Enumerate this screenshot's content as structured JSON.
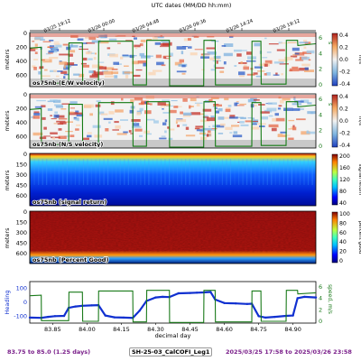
{
  "figure": {
    "top_axis_title": "UTC dates (MM/DD hh:mm)",
    "top_ticks": [
      "03/25 19:12",
      "03/26 00:00",
      "03/26 04:48",
      "03/26 09:36",
      "03/26 14:24",
      "03/26 19:12"
    ],
    "footer": {
      "range": "83.75 to 85.0 (1.25 days)",
      "cruise": "SH-25-03_CalCOFI_Leg1",
      "dates": "2025/03/25 17:58 to 2025/03/26 23:58"
    }
  },
  "chart_data": [
    {
      "type": "heatmap",
      "panel_label": "os75nb (E/W velocity)",
      "ylabel": "meters",
      "y_ticks": [
        "0",
        "200",
        "400",
        "600"
      ],
      "ylim": [
        700,
        0
      ],
      "right_axis_label": "s",
      "right_ticks": [
        "0",
        "2",
        "4",
        "6"
      ],
      "right_axis_color": "#1a7a1a",
      "colorbar": {
        "label": "m/s",
        "ticks": [
          "0.4",
          "0.2",
          "0.0",
          "-0.2",
          "-0.4"
        ],
        "range": [
          -0.4,
          0.4
        ],
        "palette": "diverging"
      },
      "speed_line": {
        "x": [
          83.75,
          83.8,
          83.801,
          83.92,
          83.921,
          83.98,
          83.981,
          84.05,
          84.051,
          84.2,
          84.201,
          84.26,
          84.261,
          84.36,
          84.361,
          84.51,
          84.511,
          84.56,
          84.561,
          84.72,
          84.721,
          84.76,
          84.761,
          84.87,
          84.871,
          84.92,
          84.921,
          85.0
        ],
        "y": [
          4.5,
          4.6,
          0.4,
          0.4,
          5.1,
          5.1,
          0.3,
          0.3,
          5.3,
          5.3,
          0.2,
          0.2,
          5.4,
          5.4,
          0.1,
          0.1,
          5.4,
          5.4,
          0.2,
          0.2,
          5.3,
          5.3,
          0.3,
          0.3,
          5.4,
          5.4,
          4.8,
          5.0
        ]
      }
    },
    {
      "type": "heatmap",
      "panel_label": "os75nb (N/S velocity)",
      "ylabel": "meters",
      "y_ticks": [
        "0",
        "200",
        "400",
        "600"
      ],
      "ylim": [
        700,
        0
      ],
      "right_axis_label": "s",
      "right_ticks": [
        "0",
        "2",
        "4",
        "6"
      ],
      "right_axis_color": "#1a7a1a",
      "colorbar": {
        "label": "m/s",
        "ticks": [
          "0.4",
          "0.2",
          "0.0",
          "-0.2",
          "-0.4"
        ],
        "range": [
          -0.4,
          0.4
        ],
        "palette": "diverging"
      },
      "speed_line": {
        "x": [
          83.75,
          83.8,
          83.801,
          83.92,
          83.921,
          83.98,
          83.981,
          84.05,
          84.051,
          84.2,
          84.201,
          84.26,
          84.261,
          84.36,
          84.361,
          84.51,
          84.511,
          84.56,
          84.561,
          84.72,
          84.721,
          84.76,
          84.761,
          84.87,
          84.871,
          84.92,
          84.921,
          85.0
        ],
        "y": [
          4.5,
          4.6,
          0.4,
          0.4,
          5.1,
          5.1,
          0.3,
          0.3,
          5.3,
          5.3,
          0.2,
          0.2,
          5.4,
          5.4,
          0.1,
          0.1,
          5.4,
          5.4,
          0.2,
          0.2,
          5.3,
          5.3,
          0.3,
          0.3,
          5.4,
          5.4,
          4.8,
          5.0
        ]
      }
    },
    {
      "type": "heatmap",
      "panel_label": "os75nb (signal return)",
      "ylabel": "meters",
      "y_ticks": [
        "0",
        "150",
        "300",
        "450",
        "600"
      ],
      "ylim": [
        700,
        0
      ],
      "colorbar": {
        "label": "signal return",
        "ticks": [
          "200",
          "160",
          "120",
          "80",
          "40"
        ],
        "range": [
          20,
          200
        ],
        "palette": "jet"
      }
    },
    {
      "type": "heatmap",
      "panel_label": "os75nb (Percent Good)",
      "ylabel": "meters",
      "y_ticks": [
        "0",
        "150",
        "300",
        "450",
        "600"
      ],
      "ylim": [
        700,
        0
      ],
      "colorbar": {
        "label": "percent good",
        "ticks": [
          "100",
          "80",
          "60",
          "40",
          "20",
          "0"
        ],
        "range": [
          0,
          100
        ],
        "palette": "jet"
      }
    },
    {
      "type": "line",
      "ylabel": "Heading",
      "y_ticks": [
        "100",
        "0",
        "-100"
      ],
      "ylim": [
        -150,
        150
      ],
      "right_axis_label": "speed, m/s",
      "right_ticks": [
        "0",
        "2",
        "4",
        "6"
      ],
      "right_axis_color": "#1a7a1a",
      "xlabel": "decimal day",
      "x_ticks": [
        "83.85",
        "84.00",
        "84.15",
        "84.30",
        "84.45",
        "84.60",
        "84.75",
        "84.90"
      ],
      "xlim": [
        83.75,
        85.0
      ],
      "series": [
        {
          "color": "#1030d0",
          "x": [
            83.75,
            83.8,
            83.83,
            83.86,
            83.9,
            83.92,
            83.95,
            83.98,
            84.02,
            84.05,
            84.08,
            84.12,
            84.16,
            84.2,
            84.23,
            84.26,
            84.3,
            84.33,
            84.36,
            84.4,
            84.45,
            84.48,
            84.51,
            84.54,
            84.56,
            84.6,
            84.65,
            84.7,
            84.72,
            84.75,
            84.78,
            84.82,
            84.87,
            84.9,
            84.92,
            84.95,
            85.0
          ],
          "y": [
            -110,
            -112,
            -105,
            -100,
            -98,
            -40,
            -30,
            -25,
            -22,
            -20,
            -95,
            -108,
            -110,
            -112,
            -60,
            10,
            35,
            40,
            38,
            65,
            68,
            70,
            72,
            75,
            20,
            -5,
            -8,
            -12,
            -10,
            -100,
            -110,
            -105,
            -98,
            -95,
            30,
            40,
            35
          ]
        },
        {
          "color": "#1a7a1a",
          "x": [
            83.75,
            83.8,
            83.801,
            83.92,
            83.921,
            83.98,
            83.981,
            84.05,
            84.051,
            84.2,
            84.201,
            84.26,
            84.261,
            84.36,
            84.361,
            84.51,
            84.511,
            84.56,
            84.561,
            84.72,
            84.721,
            84.76,
            84.761,
            84.87,
            84.871,
            84.92,
            84.921,
            85.0
          ],
          "y": [
            4.5,
            4.6,
            0.4,
            0.4,
            5.1,
            5.1,
            0.3,
            0.3,
            5.3,
            5.3,
            0.2,
            0.2,
            5.4,
            5.4,
            0.1,
            0.1,
            5.4,
            5.4,
            0.2,
            0.2,
            5.3,
            5.3,
            0.3,
            0.3,
            5.4,
            5.4,
            4.8,
            5.0
          ]
        }
      ]
    }
  ]
}
